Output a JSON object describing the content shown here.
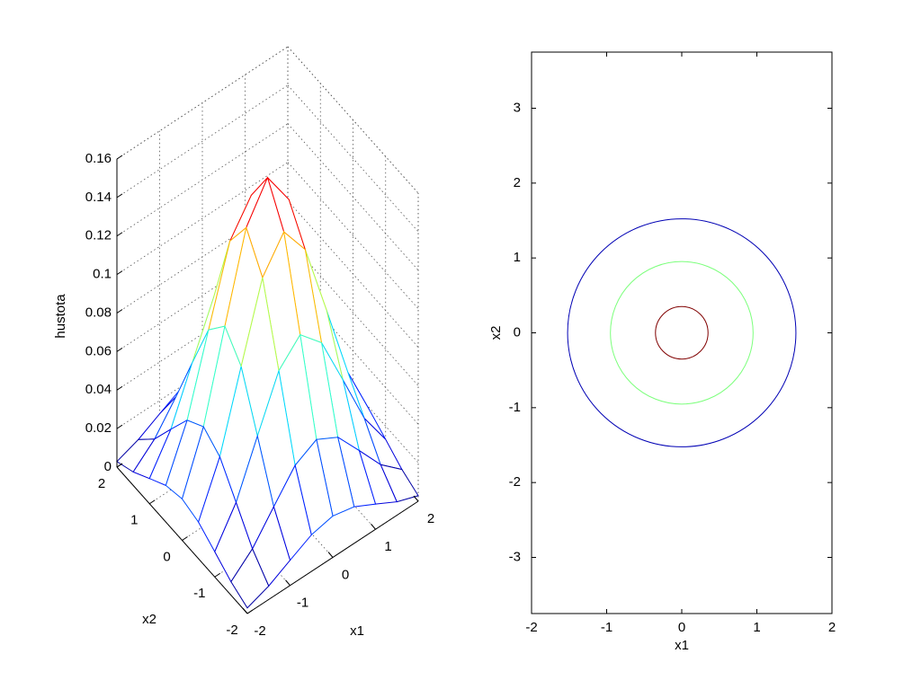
{
  "chart_data": [
    {
      "type": "mesh",
      "xlabel": "x1",
      "ylabel": "x2",
      "zlabel": "hustota",
      "x": [
        -2,
        -1.5,
        -1,
        -0.5,
        0,
        0.5,
        1,
        1.5,
        2
      ],
      "y": [
        -2,
        -1.5,
        -1,
        -0.5,
        0,
        0.5,
        1,
        1.5,
        2
      ],
      "z": [
        [
          0.0029,
          0.007,
          0.0131,
          0.019,
          0.0215,
          0.019,
          0.0131,
          0.007,
          0.0029
        ],
        [
          0.007,
          0.0168,
          0.0314,
          0.0456,
          0.0517,
          0.0456,
          0.0314,
          0.0168,
          0.007
        ],
        [
          0.0131,
          0.0314,
          0.0586,
          0.0852,
          0.0966,
          0.0852,
          0.0586,
          0.0314,
          0.0131
        ],
        [
          0.019,
          0.0456,
          0.0852,
          0.124,
          0.1405,
          0.124,
          0.0852,
          0.0456,
          0.019
        ],
        [
          0.0215,
          0.0517,
          0.0966,
          0.1405,
          0.1592,
          0.1405,
          0.0966,
          0.0517,
          0.0215
        ],
        [
          0.019,
          0.0456,
          0.0852,
          0.124,
          0.1405,
          0.124,
          0.0852,
          0.0456,
          0.019
        ],
        [
          0.0131,
          0.0314,
          0.0586,
          0.0852,
          0.0966,
          0.0852,
          0.0586,
          0.0314,
          0.0131
        ],
        [
          0.007,
          0.0168,
          0.0314,
          0.0456,
          0.0517,
          0.0456,
          0.0314,
          0.0168,
          0.007
        ],
        [
          0.0029,
          0.007,
          0.0131,
          0.019,
          0.0215,
          0.019,
          0.0131,
          0.007,
          0.0029
        ]
      ],
      "xlim": [
        -2,
        2
      ],
      "ylim": [
        -2,
        2
      ],
      "zlim": [
        0,
        0.16
      ],
      "xticks": [
        -2,
        -1,
        0,
        1,
        2
      ],
      "yticks": [
        -2,
        -1,
        0,
        1,
        2
      ],
      "zticks": [
        0,
        0.02,
        0.04,
        0.06,
        0.08,
        0.1,
        0.12,
        0.14,
        0.16
      ],
      "colormap": "jet",
      "grid": true
    },
    {
      "type": "contour",
      "xlabel": "x1",
      "ylabel": "x2",
      "contours": [
        {
          "x": 0,
          "y": 0,
          "radius": 1.52,
          "color": "#0000b4"
        },
        {
          "x": 0,
          "y": 0,
          "radius": 0.95,
          "color": "#7cff7c"
        },
        {
          "x": 0,
          "y": 0,
          "radius": 0.35,
          "color": "#800000"
        }
      ],
      "xlim": [
        -2,
        2
      ],
      "ylim": [
        -3.75,
        3.75
      ],
      "xticks": [
        -2,
        -1,
        0,
        1,
        2
      ],
      "yticks": [
        -3,
        -2,
        -1,
        0,
        1,
        2,
        3
      ]
    }
  ]
}
